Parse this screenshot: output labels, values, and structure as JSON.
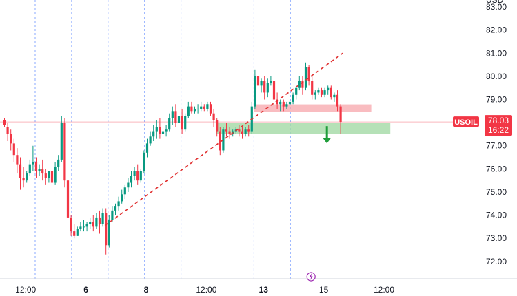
{
  "chart_data": {
    "type": "candlestick",
    "currency_label": "USD",
    "symbol": "USOIL",
    "last_price": "78.03",
    "countdown": "16:22",
    "y_ticks": [
      "83.00",
      "82.00",
      "81.00",
      "80.00",
      "79.00",
      "77.00",
      "76.00",
      "75.00",
      "74.00",
      "73.00",
      "72.00"
    ],
    "ylim": [
      71.25,
      83.3
    ],
    "x_labels": [
      {
        "t": 7,
        "label": "12:00",
        "bold": false
      },
      {
        "t": 26,
        "label": "6",
        "bold": true
      },
      {
        "t": 45,
        "label": "8",
        "bold": true
      },
      {
        "t": 64,
        "label": "12:00",
        "bold": false
      },
      {
        "t": 82,
        "label": "13",
        "bold": true
      },
      {
        "t": 101,
        "label": "15",
        "bold": false
      },
      {
        "t": 120,
        "label": "12:00",
        "bold": false
      }
    ],
    "day_separators": [
      10,
      21.5,
      33,
      44.5,
      56,
      79,
      90.5
    ],
    "candles": [
      [
        78.1,
        78.2,
        77.9,
        77.8
      ],
      [
        77.8,
        78.0,
        77.5,
        77.2
      ],
      [
        77.5,
        77.7,
        77.1,
        76.8
      ],
      [
        77.1,
        77.3,
        76.6,
        76.3
      ],
      [
        76.6,
        76.9,
        76.2,
        75.8
      ],
      [
        76.2,
        76.5,
        75.6,
        75.1
      ],
      [
        75.6,
        76.1,
        75.5,
        75.2
      ],
      [
        75.5,
        75.9,
        75.8,
        75.4
      ],
      [
        75.8,
        76.4,
        76.2,
        75.7
      ],
      [
        76.2,
        77.0,
        76.3,
        75.9
      ],
      [
        76.3,
        76.5,
        75.9,
        75.6
      ],
      [
        75.9,
        76.2,
        76.0,
        75.7
      ],
      [
        76.0,
        76.4,
        75.8,
        75.5
      ],
      [
        75.8,
        76.0,
        75.6,
        75.3
      ],
      [
        75.6,
        75.9,
        75.9,
        75.4
      ],
      [
        75.9,
        76.0,
        75.4,
        75.1
      ],
      [
        75.4,
        76.3,
        76.1,
        75.3
      ],
      [
        76.1,
        76.6,
        76.4,
        75.9
      ],
      [
        76.4,
        78.3,
        78.0,
        76.3
      ],
      [
        78.0,
        78.2,
        75.5,
        75.2
      ],
      [
        75.5,
        75.6,
        73.9,
        73.8
      ],
      [
        73.9,
        74.0,
        73.3,
        73.1
      ],
      [
        73.3,
        73.6,
        73.1,
        73.0
      ],
      [
        73.1,
        73.5,
        73.4,
        73.1
      ],
      [
        73.4,
        73.7,
        73.5,
        73.3
      ],
      [
        73.5,
        73.8,
        73.5,
        73.3
      ],
      [
        73.5,
        73.7,
        73.6,
        73.3
      ],
      [
        73.6,
        73.9,
        73.7,
        73.4
      ],
      [
        73.7,
        74.0,
        73.5,
        73.3
      ],
      [
        73.5,
        74.1,
        73.9,
        73.4
      ],
      [
        73.9,
        74.2,
        73.6,
        73.2
      ],
      [
        73.6,
        74.3,
        74.1,
        73.5
      ],
      [
        74.1,
        74.3,
        72.7,
        72.3
      ],
      [
        72.7,
        74.0,
        73.8,
        72.6
      ],
      [
        73.8,
        74.4,
        74.2,
        73.7
      ],
      [
        74.2,
        74.5,
        74.4,
        74.0
      ],
      [
        74.4,
        74.8,
        74.6,
        74.2
      ],
      [
        74.6,
        75.1,
        74.9,
        74.5
      ],
      [
        74.9,
        75.3,
        75.2,
        74.7
      ],
      [
        75.2,
        75.6,
        75.4,
        75.0
      ],
      [
        75.4,
        75.9,
        75.7,
        75.2
      ],
      [
        75.7,
        76.1,
        75.9,
        75.5
      ],
      [
        75.9,
        76.2,
        75.5,
        75.3
      ],
      [
        75.5,
        76.0,
        75.9,
        75.4
      ],
      [
        75.9,
        76.8,
        76.7,
        75.8
      ],
      [
        76.7,
        77.3,
        77.1,
        76.5
      ],
      [
        77.1,
        77.6,
        77.4,
        77.0
      ],
      [
        77.4,
        77.9,
        77.6,
        77.2
      ],
      [
        77.6,
        78.1,
        77.8,
        77.3
      ],
      [
        77.8,
        78.2,
        77.5,
        77.3
      ],
      [
        77.5,
        77.8,
        77.6,
        77.3
      ],
      [
        77.6,
        77.9,
        77.7,
        77.4
      ],
      [
        77.7,
        78.4,
        78.2,
        77.6
      ],
      [
        78.2,
        78.7,
        78.5,
        77.9
      ],
      [
        78.5,
        78.8,
        78.0,
        77.8
      ],
      [
        78.0,
        78.4,
        78.3,
        77.9
      ],
      [
        78.3,
        78.6,
        77.7,
        77.5
      ],
      [
        77.7,
        78.4,
        78.3,
        77.6
      ],
      [
        78.3,
        78.9,
        78.7,
        78.2
      ],
      [
        78.7,
        78.9,
        78.5,
        78.4
      ],
      [
        78.5,
        78.7,
        78.6,
        78.4
      ],
      [
        78.6,
        78.8,
        78.6,
        78.4
      ],
      [
        78.6,
        78.9,
        78.7,
        78.5
      ],
      [
        78.7,
        78.8,
        78.6,
        78.5
      ],
      [
        78.6,
        78.9,
        78.8,
        78.5
      ],
      [
        78.8,
        78.9,
        78.4,
        78.3
      ],
      [
        78.4,
        78.6,
        78.1,
        77.8
      ],
      [
        78.1,
        78.2,
        77.6,
        77.4
      ],
      [
        77.6,
        77.8,
        76.8,
        76.6
      ],
      [
        76.8,
        77.8,
        77.7,
        76.7
      ],
      [
        77.7,
        78.0,
        77.6,
        77.4
      ],
      [
        77.6,
        77.8,
        77.5,
        77.3
      ],
      [
        77.5,
        77.7,
        77.6,
        77.4
      ],
      [
        77.6,
        77.8,
        77.7,
        77.5
      ],
      [
        77.7,
        77.9,
        77.6,
        77.4
      ],
      [
        77.6,
        77.8,
        77.5,
        77.3
      ],
      [
        77.5,
        77.8,
        77.7,
        77.4
      ],
      [
        77.7,
        77.9,
        77.6,
        77.4
      ],
      [
        77.6,
        78.9,
        78.7,
        77.5
      ],
      [
        78.7,
        80.3,
        80.0,
        78.6
      ],
      [
        80.0,
        80.2,
        79.6,
        79.4
      ],
      [
        79.6,
        79.9,
        79.8,
        79.3
      ],
      [
        79.8,
        80.0,
        79.3,
        79.0
      ],
      [
        79.3,
        79.9,
        79.7,
        79.1
      ],
      [
        79.7,
        80.0,
        79.8,
        79.6
      ],
      [
        79.8,
        79.9,
        79.0,
        78.8
      ],
      [
        79.0,
        79.3,
        78.8,
        78.6
      ],
      [
        78.8,
        79.0,
        78.9,
        78.5
      ],
      [
        78.9,
        79.0,
        78.7,
        78.5
      ],
      [
        78.7,
        78.9,
        78.8,
        78.6
      ],
      [
        78.8,
        79.0,
        78.9,
        78.7
      ],
      [
        78.9,
        79.3,
        79.2,
        78.8
      ],
      [
        79.2,
        79.6,
        79.5,
        79.0
      ],
      [
        79.5,
        80.0,
        79.8,
        79.4
      ],
      [
        79.8,
        80.0,
        79.5,
        79.2
      ],
      [
        79.5,
        80.6,
        80.4,
        79.4
      ],
      [
        80.4,
        80.5,
        79.8,
        79.6
      ],
      [
        79.8,
        80.0,
        79.2,
        79.0
      ],
      [
        79.2,
        79.4,
        79.3,
        79.0
      ],
      [
        79.3,
        79.5,
        79.4,
        79.2
      ],
      [
        79.4,
        79.5,
        79.2,
        79.1
      ],
      [
        79.2,
        79.5,
        79.4,
        79.1
      ],
      [
        79.4,
        79.6,
        79.5,
        79.2
      ],
      [
        79.5,
        79.6,
        79.1,
        79.0
      ],
      [
        79.1,
        79.3,
        79.2,
        78.9
      ],
      [
        79.2,
        79.4,
        78.7,
        78.5
      ],
      [
        78.7,
        78.8,
        78.03,
        77.5
      ]
    ],
    "trendline": {
      "from": [
        32,
        73.55
      ],
      "to": [
        107,
        81.0
      ]
    },
    "resistance_zone": {
      "t_from": 79,
      "t_to": 116,
      "y_low": 78.46,
      "y_high": 78.79
    },
    "support_zone": {
      "t_from": 67,
      "t_to": 122,
      "y_low": 77.52,
      "y_high": 78.0
    },
    "reference_price": 78.03,
    "arrow": {
      "t": 102,
      "y_top": 77.85,
      "y_bottom": 77.1
    },
    "event_marker_t": 97
  },
  "colors": {
    "up": "#089981",
    "down": "#f23645",
    "trendline": "#e03131",
    "separator": "#2962ff",
    "resistance": "#f7a5ab",
    "support": "#a3d9a5",
    "arrow": "#1f9d3a",
    "badge_bg": "#f23645",
    "axis_text": "#131722",
    "event_marker": "#9c27b0"
  }
}
